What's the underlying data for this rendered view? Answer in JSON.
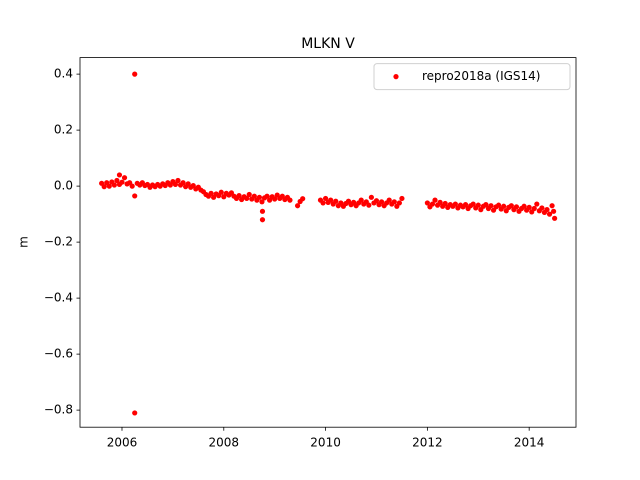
{
  "chart_data": {
    "type": "scatter",
    "title": "MLKN V",
    "ylabel": "m",
    "xlim": [
      2005.175,
      2014.92
    ],
    "ylim": [
      -0.861,
      0.459
    ],
    "xticks": [
      2006,
      2008,
      2010,
      2012,
      2014
    ],
    "yticks": [
      {
        "value": -0.8,
        "label": "−0.8"
      },
      {
        "value": -0.6,
        "label": "−0.6"
      },
      {
        "value": -0.4,
        "label": "−0.4"
      },
      {
        "value": -0.2,
        "label": "−0.2"
      },
      {
        "value": 0,
        "label": "0.0"
      },
      0.2,
      0.4
    ],
    "grid": false,
    "legend": "upper right",
    "series": [
      {
        "name": "repro2018a (IGS14)",
        "color": "#ff0000",
        "x": [
          2005.6,
          2005.65,
          2005.7,
          2005.75,
          2005.8,
          2005.85,
          2005.9,
          2005.95,
          2006.0,
          2006.05,
          2006.1,
          2006.15,
          2006.2,
          2006.3,
          2006.35,
          2006.4,
          2006.45,
          2006.5,
          2006.55,
          2006.6,
          2006.65,
          2006.7,
          2006.75,
          2006.8,
          2006.85,
          2006.9,
          2006.95,
          2007.0,
          2007.05,
          2007.1,
          2007.15,
          2007.2,
          2007.25,
          2007.3,
          2007.35,
          2007.4,
          2007.45,
          2007.5,
          2007.55,
          2007.6,
          2007.65,
          2007.7,
          2007.75,
          2007.8,
          2007.85,
          2007.9,
          2007.95,
          2008.0,
          2008.05,
          2008.1,
          2008.15,
          2008.2,
          2008.25,
          2008.3,
          2008.35,
          2008.4,
          2008.45,
          2008.5,
          2008.55,
          2008.6,
          2008.65,
          2008.7,
          2008.75,
          2008.8,
          2008.85,
          2008.9,
          2008.95,
          2009.0,
          2009.05,
          2009.1,
          2009.15,
          2009.2,
          2009.25,
          2009.3,
          2006.25,
          2006.25,
          2006.25,
          2005.95,
          2008.76,
          2008.76,
          2009.45,
          2009.5,
          2009.55,
          2009.9,
          2009.95,
          2010.0,
          2010.05,
          2010.1,
          2010.15,
          2010.2,
          2010.25,
          2010.3,
          2010.35,
          2010.4,
          2010.45,
          2010.5,
          2010.55,
          2010.6,
          2010.65,
          2010.7,
          2010.75,
          2010.8,
          2010.85,
          2010.9,
          2010.95,
          2011.0,
          2011.05,
          2011.1,
          2011.15,
          2011.2,
          2011.25,
          2011.3,
          2011.35,
          2011.4,
          2011.45,
          2011.5,
          2012.0,
          2012.05,
          2012.1,
          2012.15,
          2012.2,
          2012.25,
          2012.3,
          2012.35,
          2012.4,
          2012.45,
          2012.5,
          2012.55,
          2012.6,
          2012.65,
          2012.7,
          2012.75,
          2012.8,
          2012.85,
          2012.9,
          2012.95,
          2013.0,
          2013.05,
          2013.1,
          2013.15,
          2013.2,
          2013.25,
          2013.3,
          2013.35,
          2013.4,
          2013.45,
          2013.5,
          2013.55,
          2013.6,
          2013.65,
          2013.7,
          2013.75,
          2013.8,
          2013.85,
          2013.9,
          2013.95,
          2014.0,
          2014.05,
          2014.1,
          2014.15,
          2014.2,
          2014.25,
          2014.3,
          2014.35,
          2014.4,
          2014.45,
          2014.5,
          2014.48
        ],
        "values": [
          0.01,
          -0.002,
          0.012,
          0.0,
          0.015,
          0.004,
          0.02,
          0.006,
          0.014,
          0.03,
          0.008,
          0.012,
          0.0,
          0.01,
          0.004,
          0.012,
          0.002,
          0.006,
          -0.004,
          0.004,
          -0.002,
          0.006,
          0.0,
          0.008,
          0.002,
          0.012,
          0.004,
          0.016,
          0.006,
          0.02,
          0.004,
          0.012,
          -0.002,
          0.008,
          -0.004,
          0.002,
          -0.01,
          -0.004,
          -0.014,
          -0.02,
          -0.03,
          -0.036,
          -0.026,
          -0.04,
          -0.028,
          -0.034,
          -0.022,
          -0.038,
          -0.026,
          -0.032,
          -0.024,
          -0.036,
          -0.044,
          -0.034,
          -0.048,
          -0.038,
          -0.044,
          -0.03,
          -0.046,
          -0.036,
          -0.05,
          -0.04,
          -0.056,
          -0.042,
          -0.036,
          -0.05,
          -0.038,
          -0.046,
          -0.032,
          -0.044,
          -0.036,
          -0.048,
          -0.04,
          -0.05,
          0.4,
          -0.81,
          -0.035,
          0.04,
          -0.09,
          -0.12,
          -0.07,
          -0.055,
          -0.045,
          -0.05,
          -0.06,
          -0.044,
          -0.058,
          -0.05,
          -0.064,
          -0.054,
          -0.07,
          -0.06,
          -0.072,
          -0.062,
          -0.054,
          -0.066,
          -0.058,
          -0.07,
          -0.06,
          -0.05,
          -0.064,
          -0.056,
          -0.068,
          -0.04,
          -0.06,
          -0.052,
          -0.066,
          -0.056,
          -0.07,
          -0.06,
          -0.05,
          -0.064,
          -0.056,
          -0.072,
          -0.06,
          -0.044,
          -0.06,
          -0.074,
          -0.064,
          -0.05,
          -0.068,
          -0.058,
          -0.072,
          -0.062,
          -0.076,
          -0.066,
          -0.072,
          -0.064,
          -0.078,
          -0.068,
          -0.074,
          -0.066,
          -0.08,
          -0.07,
          -0.064,
          -0.078,
          -0.068,
          -0.084,
          -0.072,
          -0.066,
          -0.08,
          -0.07,
          -0.086,
          -0.074,
          -0.068,
          -0.082,
          -0.072,
          -0.088,
          -0.076,
          -0.07,
          -0.084,
          -0.074,
          -0.09,
          -0.08,
          -0.072,
          -0.086,
          -0.076,
          -0.092,
          -0.08,
          -0.064,
          -0.088,
          -0.078,
          -0.094,
          -0.084,
          -0.1,
          -0.07,
          -0.115,
          -0.09
        ]
      }
    ]
  }
}
